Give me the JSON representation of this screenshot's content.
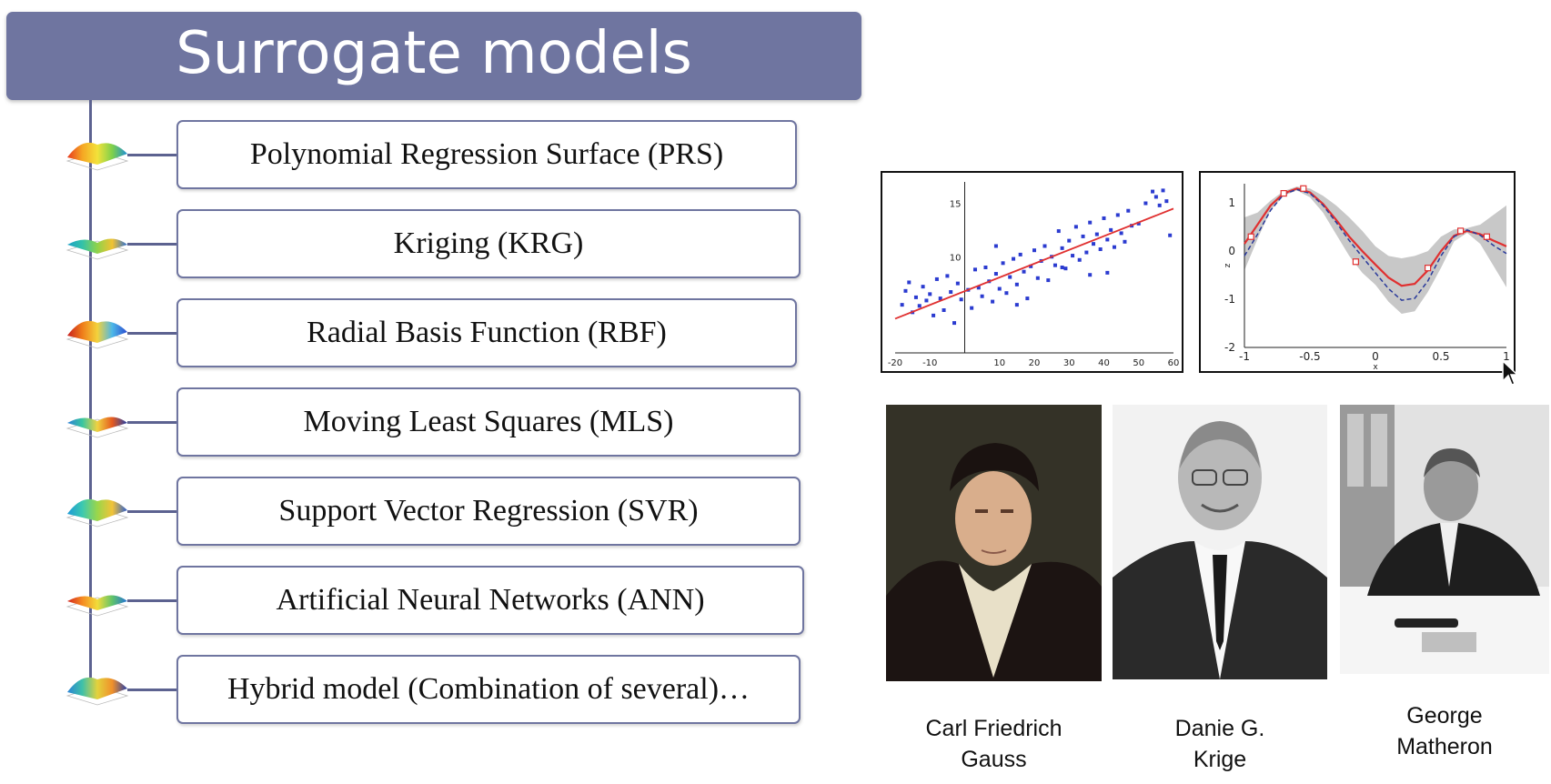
{
  "title": "Surrogate models",
  "models": [
    {
      "label": "Polynomial Regression Surface (PRS)",
      "icon": "surface-plot-icon"
    },
    {
      "label": "Kriging (KRG)",
      "icon": "surface-plot-icon"
    },
    {
      "label": "Radial Basis Function (RBF)",
      "icon": "surface-plot-icon"
    },
    {
      "label": "Moving Least Squares (MLS)",
      "icon": "surface-plot-icon"
    },
    {
      "label": "Support Vector Regression (SVR)",
      "icon": "surface-plot-icon"
    },
    {
      "label": "Artificial Neural Networks (ANN)",
      "icon": "surface-plot-icon"
    },
    {
      "label": "Hybrid model (Combination of several)…",
      "icon": "surface-plot-icon"
    }
  ],
  "chart_data": [
    {
      "type": "scatter",
      "xticks": [
        "-20",
        "-10",
        "10",
        "20",
        "30",
        "40",
        "50",
        "60"
      ],
      "yticks": [
        "10",
        "15"
      ],
      "xlim": [
        -20,
        60
      ],
      "ylim": [
        1,
        17
      ],
      "fit_line": {
        "x": [
          -20,
          60
        ],
        "y": [
          4.2,
          14.5
        ]
      },
      "points": [
        [
          -18,
          5.5
        ],
        [
          -17,
          6.8
        ],
        [
          -16,
          7.6
        ],
        [
          -15,
          4.8
        ],
        [
          -14,
          6.2
        ],
        [
          -13,
          5.4
        ],
        [
          -12,
          7.2
        ],
        [
          -11,
          5.9
        ],
        [
          -10,
          6.5
        ],
        [
          -9,
          4.5
        ],
        [
          -8,
          7.9
        ],
        [
          -7,
          6.1
        ],
        [
          -6,
          5.0
        ],
        [
          -5,
          8.2
        ],
        [
          -4,
          6.7
        ],
        [
          -3,
          3.8
        ],
        [
          -2,
          7.5
        ],
        [
          -1,
          6.0
        ],
        [
          1,
          6.9
        ],
        [
          2,
          5.2
        ],
        [
          3,
          8.8
        ],
        [
          4,
          7.1
        ],
        [
          5,
          6.3
        ],
        [
          6,
          9.0
        ],
        [
          7,
          7.7
        ],
        [
          8,
          5.8
        ],
        [
          9,
          8.4
        ],
        [
          10,
          7.0
        ],
        [
          11,
          9.4
        ],
        [
          12,
          6.6
        ],
        [
          13,
          8.1
        ],
        [
          14,
          9.8
        ],
        [
          15,
          7.4
        ],
        [
          16,
          10.2
        ],
        [
          17,
          8.6
        ],
        [
          18,
          6.1
        ],
        [
          19,
          9.1
        ],
        [
          20,
          10.6
        ],
        [
          21,
          8.0
        ],
        [
          22,
          9.6
        ],
        [
          23,
          11.0
        ],
        [
          24,
          7.8
        ],
        [
          25,
          10.0
        ],
        [
          26,
          9.2
        ],
        [
          27,
          12.4
        ],
        [
          28,
          10.8
        ],
        [
          29,
          8.9
        ],
        [
          30,
          11.5
        ],
        [
          31,
          10.1
        ],
        [
          32,
          12.8
        ],
        [
          33,
          9.7
        ],
        [
          34,
          11.9
        ],
        [
          35,
          10.4
        ],
        [
          36,
          13.2
        ],
        [
          37,
          11.2
        ],
        [
          38,
          12.1
        ],
        [
          39,
          10.7
        ],
        [
          40,
          13.6
        ],
        [
          41,
          11.6
        ],
        [
          42,
          12.5
        ],
        [
          43,
          10.9
        ],
        [
          44,
          13.9
        ],
        [
          45,
          12.2
        ],
        [
          46,
          11.4
        ],
        [
          47,
          14.3
        ],
        [
          48,
          12.9
        ],
        [
          50,
          13.1
        ],
        [
          52,
          15.0
        ],
        [
          54,
          16.1
        ],
        [
          55,
          15.6
        ],
        [
          56,
          14.8
        ],
        [
          57,
          16.2
        ],
        [
          58,
          15.2
        ],
        [
          59,
          12.0
        ],
        [
          41,
          8.5
        ],
        [
          36,
          8.3
        ],
        [
          28,
          9.0
        ],
        [
          15,
          5.5
        ],
        [
          9,
          11.0
        ]
      ]
    },
    {
      "type": "line",
      "xticks": [
        "-1",
        "-0.5",
        "0",
        "0.5",
        "1"
      ],
      "yticks": [
        "1",
        "0",
        "-1",
        "-2"
      ],
      "xlabel": "x",
      "ylabel": "z",
      "xlim": [
        -1,
        1
      ],
      "ylim": [
        -2,
        1.4
      ],
      "x": [
        -1.0,
        -0.9,
        -0.8,
        -0.7,
        -0.6,
        -0.5,
        -0.4,
        -0.3,
        -0.2,
        -0.1,
        0.0,
        0.1,
        0.2,
        0.3,
        0.4,
        0.5,
        0.6,
        0.7,
        0.8,
        0.9,
        1.0
      ],
      "series": [
        {
          "values": [
            0.15,
            0.55,
            0.95,
            1.2,
            1.3,
            1.22,
            0.98,
            0.65,
            0.3,
            0.0,
            -0.28,
            -0.55,
            -0.72,
            -0.68,
            -0.4,
            0.0,
            0.32,
            0.42,
            0.35,
            0.22,
            0.1
          ],
          "color": "#e03030",
          "style": "solid"
        },
        {
          "values": [
            -0.1,
            0.35,
            0.85,
            1.18,
            1.28,
            1.2,
            0.95,
            0.6,
            0.22,
            -0.12,
            -0.45,
            -0.78,
            -1.02,
            -0.98,
            -0.62,
            -0.1,
            0.3,
            0.44,
            0.33,
            0.12,
            -0.05
          ],
          "color": "#2a3a9a",
          "style": "dashed"
        }
      ],
      "band_upper": [
        0.7,
        0.8,
        1.05,
        1.25,
        1.34,
        1.3,
        1.15,
        0.95,
        0.7,
        0.42,
        0.1,
        -0.1,
        -0.15,
        -0.1,
        0.0,
        0.3,
        0.45,
        0.48,
        0.55,
        0.75,
        0.95
      ],
      "band_lower": [
        -0.4,
        0.25,
        0.85,
        1.15,
        1.26,
        1.12,
        0.8,
        0.35,
        -0.1,
        -0.45,
        -0.7,
        -1.05,
        -1.3,
        -1.25,
        -0.85,
        -0.35,
        0.2,
        0.38,
        0.15,
        -0.3,
        -0.75
      ],
      "observations": {
        "x": [
          -0.95,
          -0.7,
          -0.55,
          -0.15,
          0.4,
          0.65,
          0.85
        ],
        "y": [
          0.3,
          1.2,
          1.3,
          -0.22,
          -0.35,
          0.42,
          0.3
        ]
      }
    }
  ],
  "people": [
    {
      "name": "Carl Friedrich\nGauss"
    },
    {
      "name": "Danie G.\nKrige"
    },
    {
      "name": "George\nMatheron"
    }
  ]
}
